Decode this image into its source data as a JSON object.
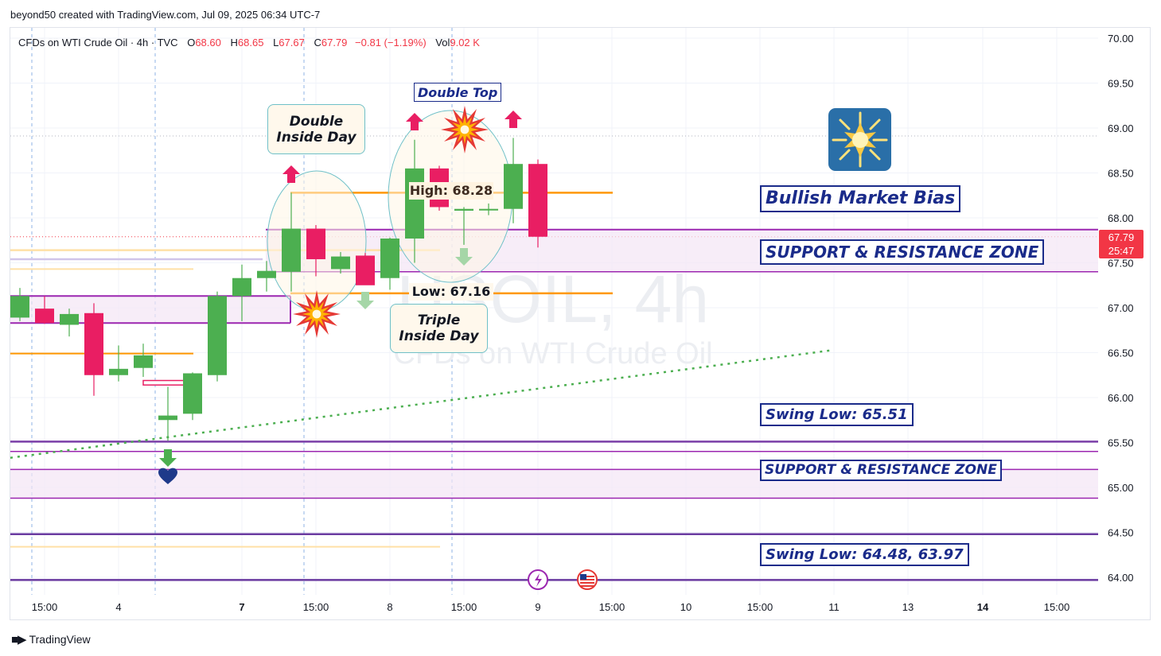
{
  "header": {
    "credit": "beyond50 created with TradingView.com, Jul 09, 2025 06:34 UTC-7"
  },
  "legend": {
    "symbol": "CFDs on WTI Crude Oil · 4h · TVC",
    "open_label": "O",
    "open": "68.60",
    "high_label": "H",
    "high": "68.65",
    "low_label": "L",
    "low": "67.67",
    "close_label": "C",
    "close": "67.79",
    "change": "−0.81 (−1.19%)",
    "vol_label": "Vol",
    "vol": "9.02 K"
  },
  "watermark": {
    "line1": "USOIL, 4h",
    "line2": "CFDs on WTI Crude Oil"
  },
  "annotations": {
    "double_inside_day": [
      "Double",
      "Inside Day"
    ],
    "triple_inside_day": [
      "Triple",
      "Inside Day"
    ],
    "double_top": "Double Top",
    "high_label": "High: 68.28",
    "low_label": "Low: 67.16",
    "bullish_bias": "Bullish Market Bias",
    "sr_zone_upper": "SUPPORT & RESISTANCE ZONE",
    "sr_zone_lower": "SUPPORT & RESISTANCE ZONE",
    "swing_low_1": "Swing Low: 65.51",
    "swing_low_2": "Swing Low: 64.48, 63.97"
  },
  "footer": {
    "brand": "TradingView"
  },
  "colors": {
    "up": "#4caf50",
    "down": "#e91e63",
    "orange": "#ff9800",
    "purple": "#9c27b0",
    "navy": "#1a2b8a",
    "price_tag": "#f23645",
    "trend": "#4caf50"
  },
  "chart_data": {
    "type": "candlestick",
    "y_axis": {
      "ylim": [
        63.78,
        70.12
      ],
      "ticks": [
        "70.00",
        "69.50",
        "69.00",
        "68.50",
        "68.00",
        "67.50",
        "67.00",
        "66.50",
        "66.00",
        "65.50",
        "65.00",
        "64.50",
        "64.00"
      ]
    },
    "x_axis": {
      "ticks": [
        "15:00",
        "4",
        "7",
        "15:00",
        "8",
        "15:00",
        "9",
        "15:00",
        "10",
        "15:00",
        "11",
        "13",
        "14",
        "15:00"
      ]
    },
    "last_price": {
      "value": "67.79",
      "countdown": "25:47"
    },
    "candles": [
      {
        "o": 66.89,
        "h": 67.22,
        "l": 66.85,
        "c": 67.13
      },
      {
        "o": 66.99,
        "h": 67.13,
        "l": 66.82,
        "c": 66.83
      },
      {
        "o": 66.81,
        "h": 66.99,
        "l": 66.68,
        "c": 66.93
      },
      {
        "o": 66.94,
        "h": 67.05,
        "l": 66.02,
        "c": 66.25
      },
      {
        "o": 66.25,
        "h": 66.58,
        "l": 66.18,
        "c": 66.32
      },
      {
        "o": 66.33,
        "h": 66.6,
        "l": 66.23,
        "c": 66.47
      },
      {
        "o": 65.75,
        "h": 66.12,
        "l": 65.52,
        "c": 65.8
      },
      {
        "o": 65.82,
        "h": 66.28,
        "l": 65.75,
        "c": 66.27
      },
      {
        "o": 66.25,
        "h": 67.18,
        "l": 66.18,
        "c": 67.13
      },
      {
        "o": 67.13,
        "h": 67.48,
        "l": 66.85,
        "c": 67.33
      },
      {
        "o": 67.33,
        "h": 67.52,
        "l": 67.18,
        "c": 67.41
      },
      {
        "o": 67.4,
        "h": 68.28,
        "l": 67.18,
        "c": 67.88
      },
      {
        "o": 67.88,
        "h": 67.92,
        "l": 67.35,
        "c": 67.54
      },
      {
        "o": 67.43,
        "h": 67.62,
        "l": 67.38,
        "c": 67.57
      },
      {
        "o": 67.58,
        "h": 67.61,
        "l": 67.28,
        "c": 67.25
      },
      {
        "o": 67.33,
        "h": 67.78,
        "l": 67.2,
        "c": 67.77
      },
      {
        "o": 67.77,
        "h": 68.87,
        "l": 67.5,
        "c": 68.55
      },
      {
        "o": 68.55,
        "h": 68.58,
        "l": 68.08,
        "c": 68.12
      },
      {
        "o": 68.08,
        "h": 68.12,
        "l": 67.7,
        "c": 68.1
      },
      {
        "o": 68.1,
        "h": 68.16,
        "l": 68.03,
        "c": 68.1
      },
      {
        "o": 68.1,
        "h": 68.89,
        "l": 67.94,
        "c": 68.6
      },
      {
        "o": 68.6,
        "h": 68.65,
        "l": 67.67,
        "c": 67.79
      }
    ],
    "levels": [
      {
        "name": "swing-low-line-1",
        "y": 65.51
      },
      {
        "name": "sr-lower-top",
        "y": 65.2
      },
      {
        "name": "sr-lower-bottom",
        "y": 64.88
      },
      {
        "name": "swing-low-line-2",
        "y": 64.48
      },
      {
        "name": "swing-low-line-3",
        "y": 63.97
      },
      {
        "name": "sr-upper-top",
        "y": 67.87
      },
      {
        "name": "sr-upper-bottom",
        "y": 67.4
      }
    ],
    "high_level": 68.28,
    "low_level": 67.16
  }
}
